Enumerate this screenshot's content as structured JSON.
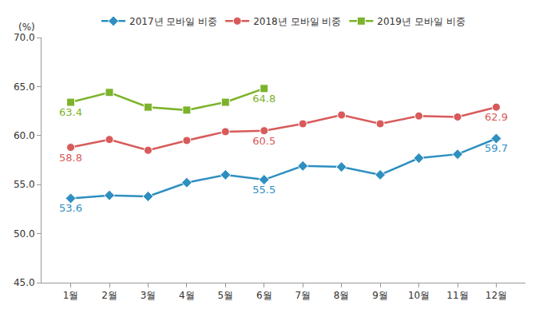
{
  "chart_data": {
    "type": "line",
    "ylabel": "(%)",
    "categories": [
      "1월",
      "2월",
      "3월",
      "4월",
      "5월",
      "6월",
      "7월",
      "8월",
      "9월",
      "10월",
      "11월",
      "12월"
    ],
    "series": [
      {
        "name": "2017년 모바일 비중",
        "color": "#2e8fc0",
        "marker": "diamond",
        "values": [
          53.6,
          53.9,
          53.8,
          55.2,
          56.0,
          55.5,
          56.9,
          56.8,
          56.0,
          57.7,
          58.1,
          59.7
        ],
        "value_labels": [
          "53.6",
          null,
          null,
          null,
          null,
          "55.5",
          null,
          null,
          null,
          null,
          null,
          "59.7"
        ]
      },
      {
        "name": "2018년 모바일 비중",
        "color": "#d85a5a",
        "marker": "circle",
        "values": [
          58.8,
          59.6,
          58.5,
          59.5,
          60.4,
          60.5,
          61.2,
          62.1,
          61.2,
          62.0,
          61.9,
          62.9
        ],
        "value_labels": [
          "58.8",
          null,
          null,
          null,
          null,
          "60.5",
          null,
          null,
          null,
          null,
          null,
          "62.9"
        ]
      },
      {
        "name": "2019년 모바일 비중",
        "color": "#7cb32b",
        "marker": "square",
        "values": [
          63.4,
          64.4,
          62.9,
          62.6,
          63.4,
          64.8,
          null,
          null,
          null,
          null,
          null,
          null
        ],
        "value_labels": [
          "63.4",
          null,
          null,
          null,
          null,
          "64.8",
          null,
          null,
          null,
          null,
          null,
          null
        ]
      }
    ],
    "ylim": [
      45,
      70
    ],
    "yticks": [
      {
        "value": 45,
        "label": "45.0"
      },
      {
        "value": 50,
        "label": "50.0"
      },
      {
        "value": 55,
        "label": "55.0"
      },
      {
        "value": 60,
        "label": "60.0"
      },
      {
        "value": 65,
        "label": "65.0"
      },
      {
        "value": 70,
        "label": "70.0"
      }
    ],
    "grid": false,
    "legend": "top",
    "data_labels": true
  }
}
